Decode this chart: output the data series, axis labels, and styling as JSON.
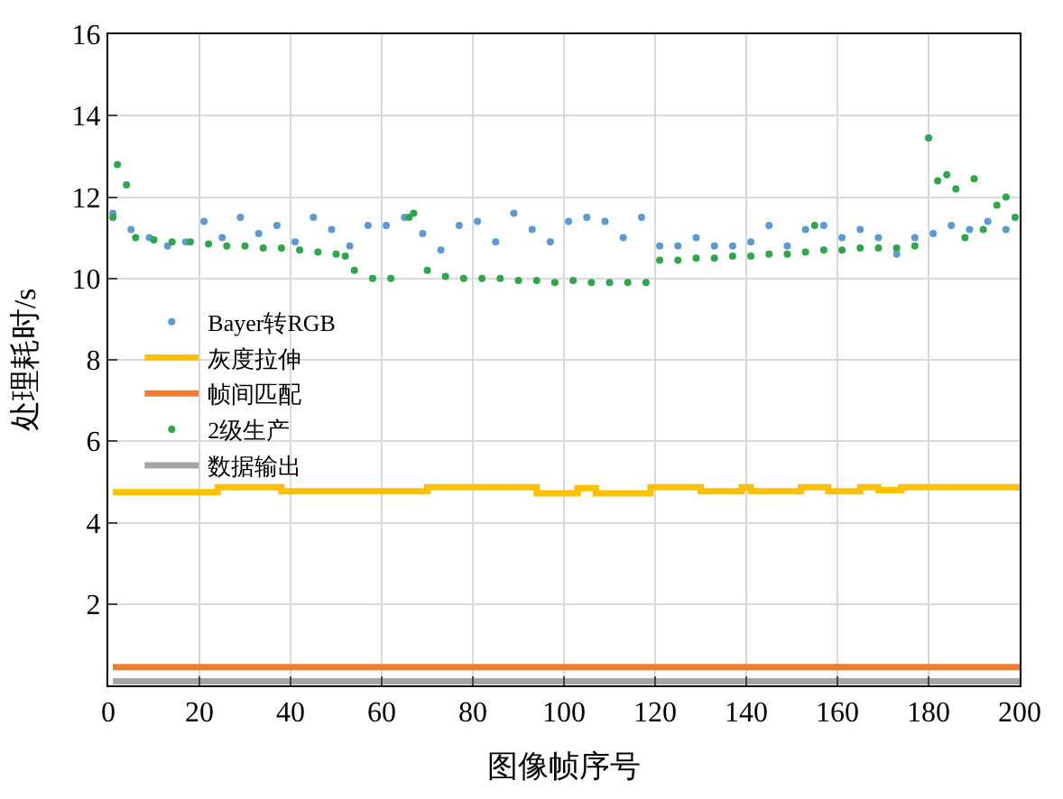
{
  "chart_data": {
    "type": "scatter",
    "xlabel": "图像帧序号",
    "ylabel": "处理耗时/s",
    "xlim": [
      0,
      200
    ],
    "xticks": [
      0,
      20,
      40,
      60,
      80,
      100,
      120,
      140,
      160,
      180,
      200
    ],
    "ylim": [
      0,
      16
    ],
    "yticks": [
      {
        "value": 0,
        "label": null
      },
      2,
      4,
      6,
      8,
      10,
      12,
      14,
      16
    ],
    "grid": true,
    "legend": "center left",
    "marker": "circle",
    "series": [
      {
        "name": "Bayer转RGB",
        "color": "#5b9bd5",
        "x": [
          1,
          5,
          9,
          13,
          17,
          21,
          25,
          29,
          33,
          37,
          41,
          45,
          49,
          53,
          57,
          61,
          65,
          69,
          73,
          77,
          81,
          85,
          89,
          93,
          97,
          101,
          105,
          109,
          113,
          117,
          121,
          125,
          129,
          133,
          137,
          141,
          145,
          149,
          153,
          157,
          161,
          165,
          169,
          173,
          177,
          181,
          185,
          189,
          193,
          197
        ],
        "values": [
          11.6,
          11.2,
          11.0,
          10.8,
          10.9,
          11.4,
          11.0,
          11.5,
          11.1,
          11.3,
          10.9,
          11.5,
          11.2,
          10.8,
          11.3,
          11.3,
          11.5,
          11.1,
          10.7,
          11.3,
          11.4,
          10.9,
          11.6,
          11.2,
          10.9,
          11.4,
          11.5,
          11.4,
          11.0,
          11.5,
          10.8,
          10.8,
          11.0,
          10.8,
          10.8,
          10.9,
          11.3,
          10.8,
          11.2,
          11.3,
          11.0,
          11.2,
          11.0,
          10.6,
          11.0,
          11.1,
          11.3,
          11.2,
          11.4,
          11.2
        ]
      },
      {
        "name": "灰度拉伸",
        "color": "#ffc000",
        "type": "step",
        "marker": "none",
        "x": [
          1,
          24,
          38,
          70,
          94,
          103,
          107,
          119,
          130,
          139,
          141,
          152,
          158,
          165,
          169,
          174,
          200
        ],
        "values": [
          4.75,
          4.87,
          4.77,
          4.87,
          4.72,
          4.85,
          4.72,
          4.87,
          4.77,
          4.87,
          4.77,
          4.87,
          4.77,
          4.87,
          4.8,
          4.87,
          4.78
        ]
      },
      {
        "name": "帧间匹配",
        "color": "#ed7d31",
        "type": "line",
        "marker": "none",
        "x": [
          1,
          200
        ],
        "values": [
          0.45,
          0.45
        ]
      },
      {
        "name": "2级生产",
        "color": "#2ca84a",
        "x": [
          1,
          2,
          4,
          6,
          10,
          14,
          18,
          22,
          26,
          30,
          34,
          38,
          42,
          46,
          50,
          52,
          54,
          58,
          62,
          66,
          67,
          70,
          74,
          78,
          82,
          86,
          90,
          94,
          98,
          102,
          106,
          110,
          114,
          118,
          121,
          125,
          129,
          133,
          137,
          141,
          145,
          149,
          153,
          155,
          157,
          161,
          165,
          169,
          173,
          177,
          180,
          182,
          184,
          186,
          188,
          190,
          192,
          195,
          197,
          199
        ],
        "values": [
          11.5,
          12.8,
          12.3,
          11.0,
          10.95,
          10.9,
          10.9,
          10.85,
          10.8,
          10.8,
          10.75,
          10.75,
          10.7,
          10.65,
          10.6,
          10.55,
          10.2,
          10.0,
          10.0,
          11.5,
          11.6,
          10.2,
          10.05,
          10.0,
          10.0,
          10.0,
          9.95,
          9.95,
          9.9,
          9.95,
          9.9,
          9.9,
          9.9,
          9.9,
          10.45,
          10.45,
          10.5,
          10.5,
          10.55,
          10.55,
          10.6,
          10.6,
          10.65,
          11.3,
          10.7,
          10.7,
          10.75,
          10.75,
          10.75,
          10.8,
          13.45,
          12.4,
          12.55,
          12.2,
          11.0,
          12.45,
          11.2,
          11.8,
          12.0,
          11.5
        ]
      },
      {
        "name": "数据输出",
        "color": "#a5a5a5",
        "type": "line",
        "marker": "none",
        "x": [
          1,
          200
        ],
        "values": [
          0.1,
          0.1
        ]
      }
    ]
  }
}
